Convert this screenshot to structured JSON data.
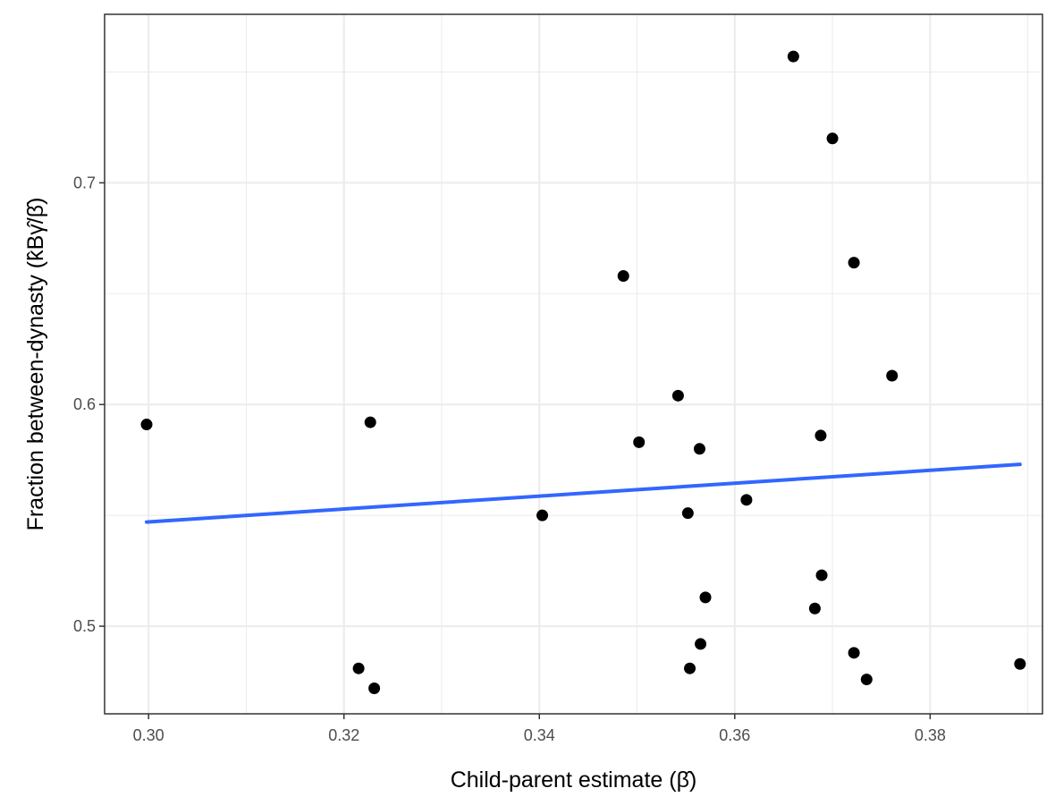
{
  "chart_data": {
    "type": "scatter",
    "xlabel": "Child-parent estimate (β̂)",
    "ylabel": "Fraction between-dynasty (k̂Bγ̂/β̂)",
    "xlim": [
      0.2955,
      0.3915
    ],
    "ylim": [
      0.4605,
      0.776
    ],
    "x_ticks": [
      "0.30",
      "0.32",
      "0.34",
      "0.36",
      "0.38"
    ],
    "y_ticks": [
      "0.5",
      "0.6",
      "0.7"
    ],
    "grid": true,
    "legend": "none",
    "colors": {
      "points": "#000000",
      "trend_line": "#3366ff",
      "grid": "#ebebeb",
      "panel_border": "#333333"
    },
    "points": [
      {
        "x": 0.2998,
        "y": 0.591
      },
      {
        "x": 0.3215,
        "y": 0.481
      },
      {
        "x": 0.3227,
        "y": 0.592
      },
      {
        "x": 0.3231,
        "y": 0.472
      },
      {
        "x": 0.3403,
        "y": 0.55
      },
      {
        "x": 0.3486,
        "y": 0.658
      },
      {
        "x": 0.3502,
        "y": 0.583
      },
      {
        "x": 0.3542,
        "y": 0.604
      },
      {
        "x": 0.3552,
        "y": 0.551
      },
      {
        "x": 0.3554,
        "y": 0.481
      },
      {
        "x": 0.3564,
        "y": 0.58
      },
      {
        "x": 0.3565,
        "y": 0.492
      },
      {
        "x": 0.357,
        "y": 0.513
      },
      {
        "x": 0.3612,
        "y": 0.557
      },
      {
        "x": 0.366,
        "y": 0.757
      },
      {
        "x": 0.3682,
        "y": 0.508
      },
      {
        "x": 0.3688,
        "y": 0.586
      },
      {
        "x": 0.3689,
        "y": 0.523
      },
      {
        "x": 0.37,
        "y": 0.72
      },
      {
        "x": 0.3722,
        "y": 0.664
      },
      {
        "x": 0.3722,
        "y": 0.488
      },
      {
        "x": 0.3735,
        "y": 0.476
      },
      {
        "x": 0.3761,
        "y": 0.613
      },
      {
        "x": 0.3892,
        "y": 0.483
      }
    ],
    "trend_line": {
      "x": [
        0.2998,
        0.3892
      ],
      "y": [
        0.547,
        0.573
      ]
    }
  }
}
